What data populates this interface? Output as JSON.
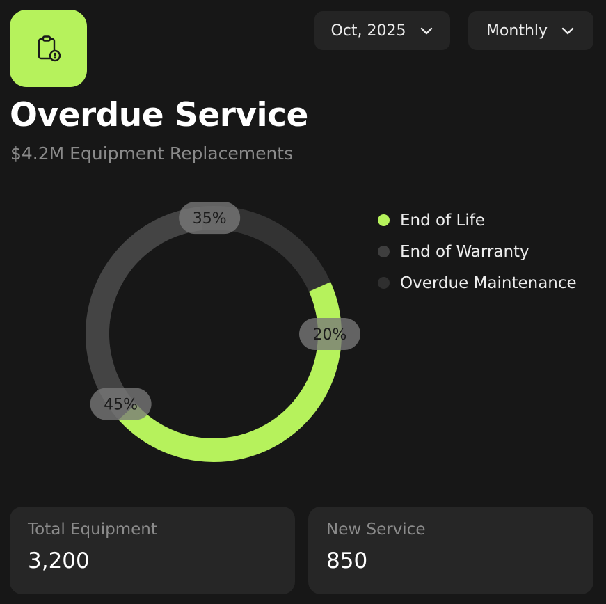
{
  "header": {
    "icon": "clipboard-alert-icon",
    "title": "Overdue Service",
    "subtitle": "$4.2M Equipment Replacements"
  },
  "filters": {
    "date": {
      "label": "Oct, 2025",
      "icon": "chevron-down-icon"
    },
    "period": {
      "label": "Monthly",
      "icon": "chevron-down-icon"
    }
  },
  "colors": {
    "accent": "#b6f25c",
    "background": "#171717",
    "card": "#262626",
    "track": "#333333"
  },
  "chart_data": {
    "type": "pie",
    "categories": [
      "End of Life",
      "End of Warranty",
      "Overdue Maintenance"
    ],
    "values": [
      45,
      35,
      20
    ],
    "labels": [
      "45%",
      "35%",
      "20%"
    ],
    "colors": [
      "#b6f25c",
      "#444444",
      "#333333"
    ],
    "legend": "right"
  },
  "stats": [
    {
      "label": "Total Equipment",
      "value": "3,200"
    },
    {
      "label": "New Service",
      "value": "850"
    }
  ]
}
